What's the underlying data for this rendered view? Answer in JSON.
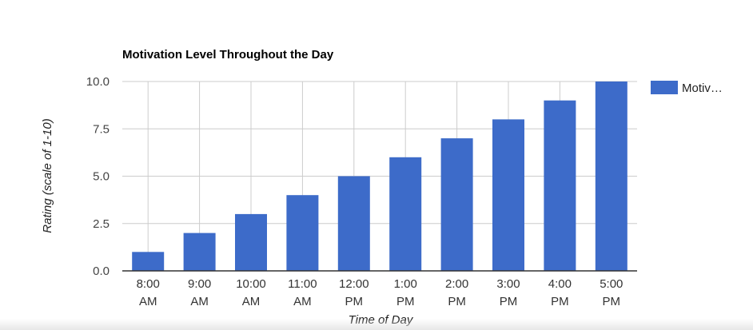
{
  "chart_data": {
    "type": "bar",
    "title": "Motivation Level Throughout the Day",
    "xlabel": "Time of Day",
    "ylabel": "Rating (scale of 1-10)",
    "categories": [
      [
        "8:00",
        "AM"
      ],
      [
        "9:00",
        "AM"
      ],
      [
        "10:00",
        "AM"
      ],
      [
        "11:00",
        "AM"
      ],
      [
        "12:00",
        "PM"
      ],
      [
        "1:00",
        "PM"
      ],
      [
        "2:00",
        "PM"
      ],
      [
        "3:00",
        "PM"
      ],
      [
        "4:00",
        "PM"
      ],
      [
        "5:00",
        "PM"
      ]
    ],
    "series": [
      {
        "name": "Motiv…",
        "color": "#3d6bc9",
        "values": [
          1,
          2,
          3,
          4,
          5,
          6,
          7,
          8,
          9,
          10
        ]
      }
    ],
    "ylim": [
      0,
      10
    ],
    "yticks": [
      "0.0",
      "2.5",
      "5.0",
      "7.5",
      "10.0"
    ],
    "grid": true,
    "legend": "right"
  }
}
